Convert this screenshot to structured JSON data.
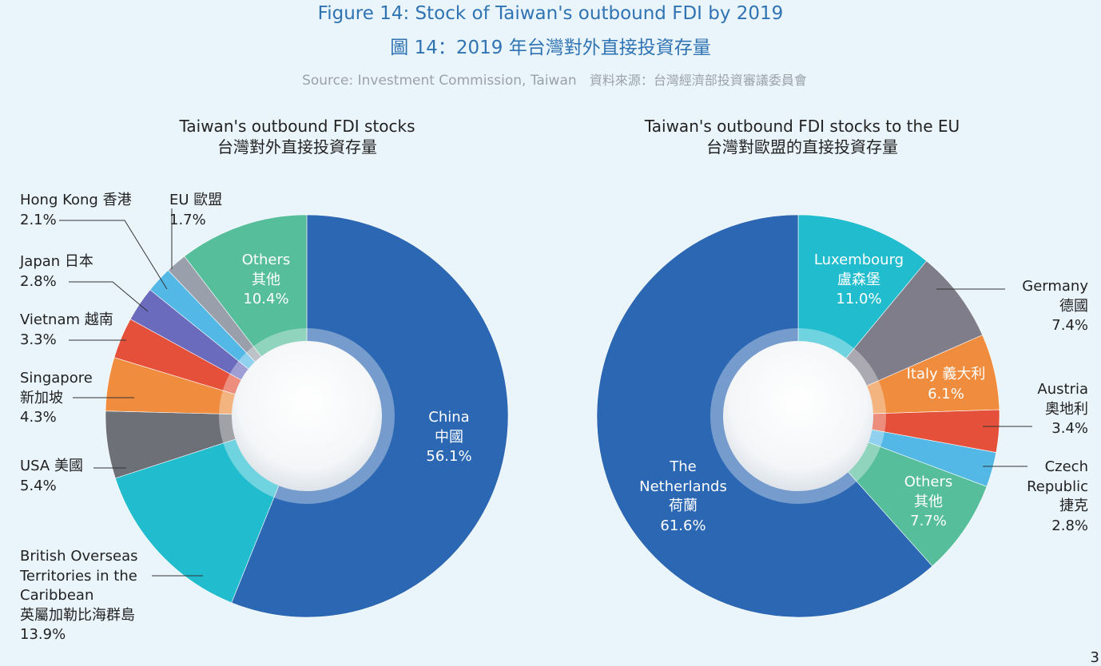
{
  "header": {
    "title_en": "Figure 14: Stock of Taiwan's outbound FDI by 2019",
    "title_zh": "圖 14：2019 年台灣對外直接投資存量",
    "source_en": "Source: Investment Commission, Taiwan",
    "source_zh": "資料來源：台灣經濟部投資審議委員會"
  },
  "page_number": "3",
  "chart_data": [
    {
      "type": "pie",
      "title": "Taiwan's outbound FDI stocks",
      "subtitle": "台灣對外直接投資存量",
      "slices": [
        {
          "label": "China 中國",
          "value": 56.1,
          "color": "#2b67b2"
        },
        {
          "label": "British Overseas Territories in the Caribbean 英屬加勒比海群島",
          "value": 13.9,
          "color": "#22bccf"
        },
        {
          "label": "USA 美國",
          "value": 5.4,
          "color": "#6e7078"
        },
        {
          "label": "Singapore 新加坡",
          "value": 4.3,
          "color": "#ef8c3d"
        },
        {
          "label": "Vietnam 越南",
          "value": 3.3,
          "color": "#e4503a"
        },
        {
          "label": "Japan 日本",
          "value": 2.8,
          "color": "#6b6bbd"
        },
        {
          "label": "Hong Kong 香港",
          "value": 2.1,
          "color": "#53b8e6"
        },
        {
          "label": "EU 歐盟",
          "value": 1.7,
          "color": "#9aa0ab"
        },
        {
          "label": "Others 其他",
          "value": 10.4,
          "color": "#56be9b"
        }
      ],
      "labels": {
        "china": [
          "China",
          "中國",
          "56.1%"
        ],
        "others": [
          "Others",
          "其他",
          "10.4%"
        ],
        "hk": [
          "Hong Kong 香港",
          "2.1%"
        ],
        "eu": [
          "EU 歐盟",
          "1.7%"
        ],
        "japan": [
          "Japan 日本",
          "2.8%"
        ],
        "vietnam": [
          "Vietnam 越南",
          "3.3%"
        ],
        "singapore": [
          "Singapore",
          "新加坡",
          "4.3%"
        ],
        "usa": [
          "USA 美國",
          "5.4%"
        ],
        "bot": [
          "British Overseas",
          "Territories in the",
          "Caribbean",
          "英屬加勒比海群島",
          "13.9%"
        ]
      }
    },
    {
      "type": "pie",
      "title": "Taiwan's outbound FDI stocks to  the EU",
      "subtitle": "台灣對歐盟的直接投資存量",
      "slices": [
        {
          "label": "Luxembourg 盧森堡",
          "value": 11.0,
          "color": "#22bccf"
        },
        {
          "label": "Germany 德國",
          "value": 7.4,
          "color": "#7e7d89"
        },
        {
          "label": "Italy 義大利",
          "value": 6.1,
          "color": "#ef8c3d"
        },
        {
          "label": "Austria 奧地利",
          "value": 3.4,
          "color": "#e4503a"
        },
        {
          "label": "Czech Republic 捷克",
          "value": 2.8,
          "color": "#53b8e6"
        },
        {
          "label": "Others 其他",
          "value": 7.7,
          "color": "#56be9b"
        },
        {
          "label": "The Netherlands 荷蘭",
          "value": 61.6,
          "color": "#2b67b2"
        }
      ],
      "labels": {
        "lux": [
          "Luxembourg",
          "盧森堡",
          "11.0%"
        ],
        "italy": [
          "Italy 義大利",
          "6.1%"
        ],
        "others": [
          "Others",
          "其他",
          "7.7%"
        ],
        "nl": [
          "The",
          "Netherlands",
          "荷蘭",
          "61.6%"
        ],
        "germany": [
          "Germany",
          "德國",
          "7.4%"
        ],
        "austria": [
          "Austria",
          "奧地利",
          "3.4%"
        ],
        "czech": [
          "Czech",
          "Republic",
          "捷克",
          "2.8%"
        ]
      }
    }
  ]
}
